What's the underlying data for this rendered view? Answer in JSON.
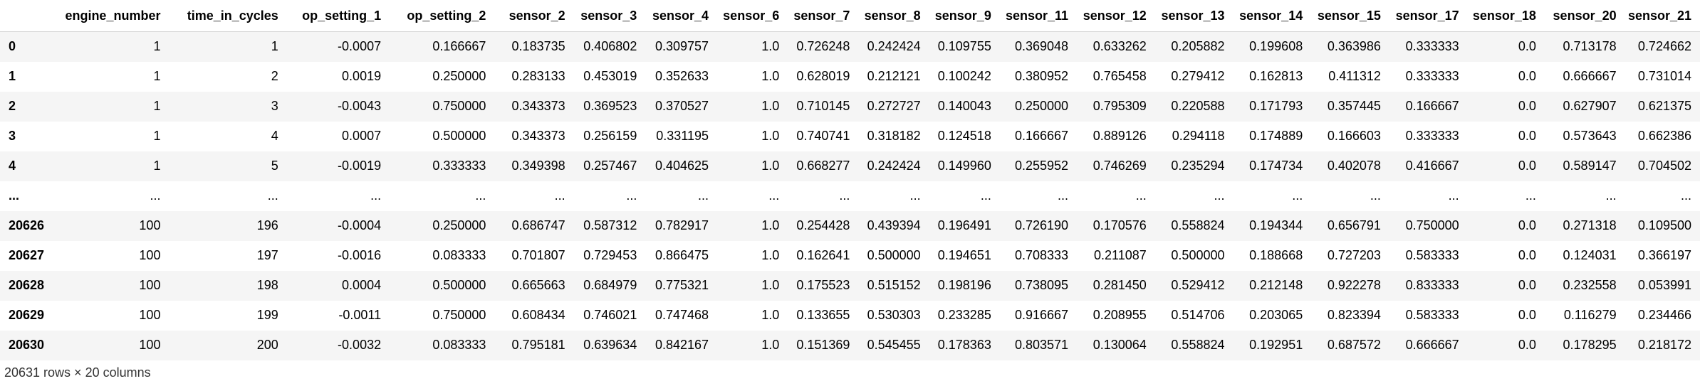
{
  "columns": [
    "",
    "engine_number",
    "time_in_cycles",
    "op_setting_1",
    "op_setting_2",
    "sensor_2",
    "sensor_3",
    "sensor_4",
    "sensor_6",
    "sensor_7",
    "sensor_8",
    "sensor_9",
    "sensor_11",
    "sensor_12",
    "sensor_13",
    "sensor_14",
    "sensor_15",
    "sensor_17",
    "sensor_18",
    "sensor_20",
    "sensor_21"
  ],
  "rows": [
    [
      "0",
      "1",
      "1",
      "-0.0007",
      "0.166667",
      "0.183735",
      "0.406802",
      "0.309757",
      "1.0",
      "0.726248",
      "0.242424",
      "0.109755",
      "0.369048",
      "0.633262",
      "0.205882",
      "0.199608",
      "0.363986",
      "0.333333",
      "0.0",
      "0.713178",
      "0.724662"
    ],
    [
      "1",
      "1",
      "2",
      "0.0019",
      "0.250000",
      "0.283133",
      "0.453019",
      "0.352633",
      "1.0",
      "0.628019",
      "0.212121",
      "0.100242",
      "0.380952",
      "0.765458",
      "0.279412",
      "0.162813",
      "0.411312",
      "0.333333",
      "0.0",
      "0.666667",
      "0.731014"
    ],
    [
      "2",
      "1",
      "3",
      "-0.0043",
      "0.750000",
      "0.343373",
      "0.369523",
      "0.370527",
      "1.0",
      "0.710145",
      "0.272727",
      "0.140043",
      "0.250000",
      "0.795309",
      "0.220588",
      "0.171793",
      "0.357445",
      "0.166667",
      "0.0",
      "0.627907",
      "0.621375"
    ],
    [
      "3",
      "1",
      "4",
      "0.0007",
      "0.500000",
      "0.343373",
      "0.256159",
      "0.331195",
      "1.0",
      "0.740741",
      "0.318182",
      "0.124518",
      "0.166667",
      "0.889126",
      "0.294118",
      "0.174889",
      "0.166603",
      "0.333333",
      "0.0",
      "0.573643",
      "0.662386"
    ],
    [
      "4",
      "1",
      "5",
      "-0.0019",
      "0.333333",
      "0.349398",
      "0.257467",
      "0.404625",
      "1.0",
      "0.668277",
      "0.242424",
      "0.149960",
      "0.255952",
      "0.746269",
      "0.235294",
      "0.174734",
      "0.402078",
      "0.416667",
      "0.0",
      "0.589147",
      "0.704502"
    ],
    [
      "...",
      "...",
      "...",
      "...",
      "...",
      "...",
      "...",
      "...",
      "...",
      "...",
      "...",
      "...",
      "...",
      "...",
      "...",
      "...",
      "...",
      "...",
      "...",
      "...",
      "..."
    ],
    [
      "20626",
      "100",
      "196",
      "-0.0004",
      "0.250000",
      "0.686747",
      "0.587312",
      "0.782917",
      "1.0",
      "0.254428",
      "0.439394",
      "0.196491",
      "0.726190",
      "0.170576",
      "0.558824",
      "0.194344",
      "0.656791",
      "0.750000",
      "0.0",
      "0.271318",
      "0.109500"
    ],
    [
      "20627",
      "100",
      "197",
      "-0.0016",
      "0.083333",
      "0.701807",
      "0.729453",
      "0.866475",
      "1.0",
      "0.162641",
      "0.500000",
      "0.194651",
      "0.708333",
      "0.211087",
      "0.500000",
      "0.188668",
      "0.727203",
      "0.583333",
      "0.0",
      "0.124031",
      "0.366197"
    ],
    [
      "20628",
      "100",
      "198",
      "0.0004",
      "0.500000",
      "0.665663",
      "0.684979",
      "0.775321",
      "1.0",
      "0.175523",
      "0.515152",
      "0.198196",
      "0.738095",
      "0.281450",
      "0.529412",
      "0.212148",
      "0.922278",
      "0.833333",
      "0.0",
      "0.232558",
      "0.053991"
    ],
    [
      "20629",
      "100",
      "199",
      "-0.0011",
      "0.750000",
      "0.608434",
      "0.746021",
      "0.747468",
      "1.0",
      "0.133655",
      "0.530303",
      "0.233285",
      "0.916667",
      "0.208955",
      "0.514706",
      "0.203065",
      "0.823394",
      "0.583333",
      "0.0",
      "0.116279",
      "0.234466"
    ],
    [
      "20630",
      "100",
      "200",
      "-0.0032",
      "0.083333",
      "0.795181",
      "0.639634",
      "0.842167",
      "1.0",
      "0.151369",
      "0.545455",
      "0.178363",
      "0.803571",
      "0.130064",
      "0.558824",
      "0.192951",
      "0.687572",
      "0.666667",
      "0.0",
      "0.178295",
      "0.218172"
    ]
  ],
  "summary": "20631 rows × 20 columns"
}
